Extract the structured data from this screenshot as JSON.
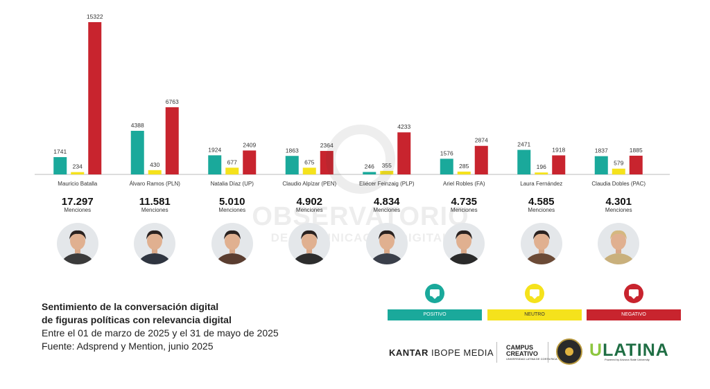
{
  "chart_data": {
    "type": "bar",
    "categories": [
      "Mauricio Batalla",
      "Álvaro Ramos (PLN)",
      "Natalia Díaz (UP)",
      "Claudio Alpízar (PEN)",
      "Eliécer Feinzaig (PLP)",
      "Ariel Robles (FA)",
      "Laura Fernández",
      "Claudia Dobles (PAC)"
    ],
    "series": [
      {
        "name": "POSITIVO",
        "color": "#1aa99b",
        "values": [
          1741,
          4388,
          1924,
          1863,
          246,
          1576,
          2471,
          1837
        ]
      },
      {
        "name": "NEUTRO",
        "color": "#f5e21c",
        "values": [
          234,
          430,
          677,
          675,
          355,
          285,
          196,
          579
        ]
      },
      {
        "name": "NEGATIVO",
        "color": "#c8242e",
        "values": [
          15322,
          6763,
          2409,
          2364,
          4233,
          2874,
          1918,
          1885
        ]
      }
    ],
    "data_labels": [
      [
        "1741",
        "234",
        "15322"
      ],
      [
        "4388",
        "430",
        "6763"
      ],
      [
        "1924",
        "677",
        "2409"
      ],
      [
        "1863",
        "675",
        "2364"
      ],
      [
        "246",
        "355",
        "4233"
      ],
      [
        "1576",
        "285",
        "2874"
      ],
      [
        "2471",
        "196",
        "1918"
      ],
      [
        "1837",
        "579",
        "1885"
      ]
    ],
    "totals": [
      "17.297",
      "11.581",
      "5.010",
      "4.902",
      "4.834",
      "4.735",
      "4.585",
      "4.301"
    ],
    "totals_label": "Menciones",
    "ylim": [
      0,
      15322
    ],
    "grid": false,
    "legend_position": "bottom-right"
  },
  "watermark": {
    "title": "OBSERVATORIO",
    "subtitle": "DE COMUNICACIÓN DIGITAL"
  },
  "caption": {
    "line1": "Sentimiento de la conversación digital",
    "line2": "de figuras políticas con relevancia digital",
    "line3": "Entre el 01 de marzo de 2025 y el 31 de mayo de 2025",
    "line4": "Fuente: Adsprend y Mention, junio 2025"
  },
  "legend": [
    {
      "label": "POSITIVO",
      "color": "#1aa99b",
      "text_color": "#ffffff"
    },
    {
      "label": "NEUTRO",
      "color": "#f5e21c",
      "text_color": "#333333"
    },
    {
      "label": "NEGATIVO",
      "color": "#c8242e",
      "text_color": "#ffffff"
    }
  ],
  "logos": {
    "kantar_a": "KANTAR",
    "kantar_b": "IBOPE MEDIA",
    "campus_a": "CAMPUS",
    "campus_b": "CREATIVO",
    "campus_c": "UNIVERSIDAD LATINA DE COSTA RICA",
    "ulatina_u": "U",
    "ulatina_rest": "LATINA",
    "asu": "Powered by Arizona State University"
  },
  "avatar_colors": [
    "#3b3b3b",
    "#2f3540",
    "#5a3d30",
    "#2d2d2d",
    "#3a3f4a",
    "#2a2a2a",
    "#6b4a36",
    "#c9b07c"
  ]
}
